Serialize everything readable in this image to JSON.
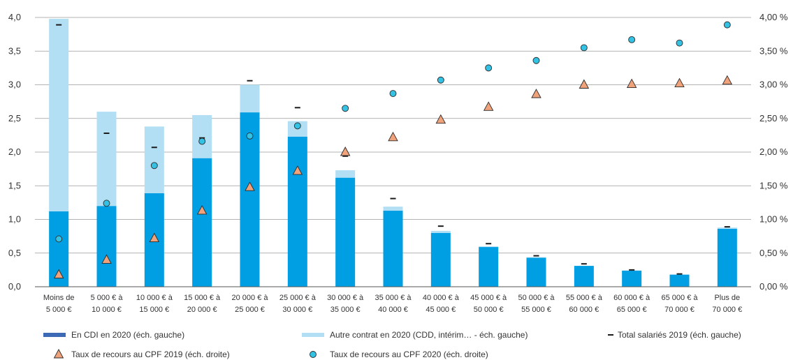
{
  "chart_data": {
    "type": "bar",
    "categories": [
      [
        "Moins de",
        "5 000 €"
      ],
      [
        "5 000 € à",
        "10 000 €"
      ],
      [
        "10 000 € à",
        "15 000 €"
      ],
      [
        "15 000 € à",
        "20 000 €"
      ],
      [
        "20 000 € à",
        "25 000 €"
      ],
      [
        "25 000 € à",
        "30 000 €"
      ],
      [
        "30 000 € à",
        "35 000 €"
      ],
      [
        "35 000 € à",
        "40 000 €"
      ],
      [
        "40 000 € à",
        "45 000 €"
      ],
      [
        "45 000 € à",
        "50 000 €"
      ],
      [
        "50 000 € à",
        "55 000 €"
      ],
      [
        "55 000 € à",
        "60 000 €"
      ],
      [
        "60 000 € à",
        "65 000 €"
      ],
      [
        "65 000 € à",
        "70 000 €"
      ],
      [
        "Plus de",
        "70 000 €"
      ]
    ],
    "y_left": {
      "ylim": [
        0,
        4
      ],
      "ticks": [
        0,
        0.5,
        1,
        1.5,
        2,
        2.5,
        3,
        3.5,
        4
      ],
      "tick_labels": [
        "0,0",
        "0,5",
        "1,0",
        "1,5",
        "2,0",
        "2,5",
        "3,0",
        "3,5",
        "4,0"
      ]
    },
    "y_right": {
      "ylim": [
        0,
        4
      ],
      "ticks": [
        0,
        0.5,
        1,
        1.5,
        2,
        2.5,
        3,
        3.5,
        4
      ],
      "tick_labels": [
        "0,00 %",
        "0,50 %",
        "1,00 %",
        "1,50 %",
        "2,00 %",
        "2,50 %",
        "3,00 %",
        "3,50 %",
        "4,00 %"
      ]
    },
    "grid": true,
    "legend_position": "bottom",
    "series": [
      {
        "name": "En CDI en 2020 (éch. gauche)",
        "type": "bar-stacked",
        "axis": "left",
        "color": "#009fe3",
        "legend_color": "#3d6ab4",
        "values": [
          1.12,
          1.2,
          1.39,
          1.91,
          2.59,
          2.23,
          1.62,
          1.13,
          0.8,
          0.59,
          0.43,
          0.31,
          0.24,
          0.18,
          0.86
        ]
      },
      {
        "name": "Autre contrat en 2020 (CDD, intérim… - éch. gauche)",
        "type": "bar-stacked",
        "axis": "left",
        "color": "#b3dff5",
        "values": [
          2.86,
          1.4,
          0.99,
          0.64,
          0.41,
          0.23,
          0.11,
          0.06,
          0.03,
          0.01,
          0.01,
          0.0,
          0.0,
          0.0,
          0.02
        ]
      },
      {
        "name": "Total salariés 2019 (éch. gauche)",
        "type": "dash",
        "axis": "left",
        "color": "#1a1a1a",
        "values": [
          3.89,
          2.28,
          2.07,
          2.21,
          3.06,
          2.66,
          1.94,
          1.31,
          0.9,
          0.64,
          0.46,
          0.34,
          0.25,
          0.19,
          0.89
        ]
      },
      {
        "name": "Taux de recours au CPF 2019 (éch. droite)",
        "type": "triangle",
        "axis": "right",
        "color": "#f0a27a",
        "values": [
          0.18,
          0.4,
          0.72,
          1.13,
          1.48,
          1.72,
          2.0,
          2.22,
          2.48,
          2.67,
          2.86,
          3.0,
          3.01,
          3.02,
          3.06
        ]
      },
      {
        "name": "Taux de recours au CPF 2020 (éch. droite)",
        "type": "circle",
        "axis": "right",
        "color": "#33c1e4",
        "values": [
          0.71,
          1.24,
          1.8,
          2.16,
          2.24,
          2.39,
          2.65,
          2.87,
          3.07,
          3.25,
          3.36,
          3.55,
          3.67,
          3.62,
          3.89
        ]
      }
    ]
  }
}
